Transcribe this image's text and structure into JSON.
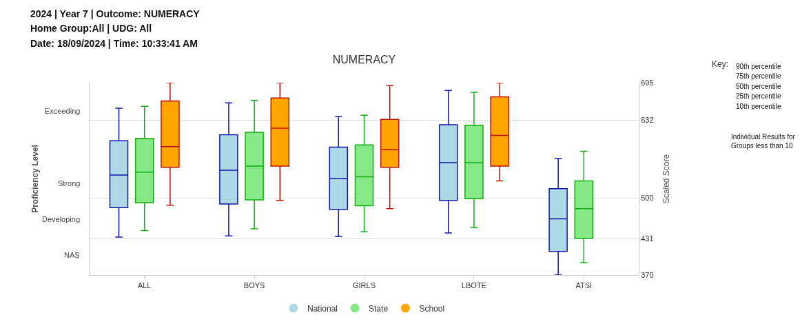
{
  "chart_data": {
    "type": "box",
    "title": "NUMERACY",
    "annotations": [
      "2024 | Year 7 | Outcome: NUMERACY",
      "Home Group:All | UDG: All",
      "Date: 18/09/2024 | Time: 10:33:41 AM",
      "Key:",
      "90th percentile",
      "75th percentile",
      "50th percentile",
      "25th percentile",
      "10th percentile",
      "Individual Results for Groups less than 10",
      "Proficiency Level",
      "Exceeding",
      "Strong",
      "Developing",
      "NAS"
    ],
    "categories": [
      "ALL",
      "BOYS",
      "GIRLS",
      "LBOTE",
      "ATSI"
    ],
    "ylabel": "Scaled Score",
    "ylim": [
      370,
      695
    ],
    "yticks": [
      370,
      431,
      500,
      632,
      695
    ],
    "grid": "y",
    "legend": "bottom",
    "series": [
      {
        "name": "National",
        "color": "#add8e6",
        "boxes": [
          {
            "low": 434,
            "q1": 484,
            "median": 539,
            "q3": 597,
            "high": 652
          },
          {
            "low": 436,
            "q1": 490,
            "median": 547,
            "q3": 607,
            "high": 661
          },
          {
            "low": 435,
            "q1": 481,
            "median": 533,
            "q3": 586,
            "high": 638
          },
          {
            "low": 441,
            "q1": 496,
            "median": 560,
            "q3": 624,
            "high": 682
          },
          {
            "low": 370,
            "q1": 410,
            "median": 465,
            "q3": 516,
            "high": 567
          }
        ]
      },
      {
        "name": "State",
        "color": "#86e886",
        "boxes": [
          {
            "low": 445,
            "q1": 492,
            "median": 544,
            "q3": 601,
            "high": 655
          },
          {
            "low": 448,
            "q1": 497,
            "median": 554,
            "q3": 611,
            "high": 665
          },
          {
            "low": 443,
            "q1": 487,
            "median": 536,
            "q3": 590,
            "high": 640
          },
          {
            "low": 450,
            "q1": 499,
            "median": 560,
            "q3": 623,
            "high": 679
          },
          {
            "low": 391,
            "q1": 432,
            "median": 482,
            "q3": 529,
            "high": 579
          }
        ]
      },
      {
        "name": "School",
        "color": "#ffa500",
        "boxes": [
          {
            "low": 488,
            "q1": 552,
            "median": 587,
            "q3": 664,
            "high": 695
          },
          {
            "low": 496,
            "q1": 554,
            "median": 618,
            "q3": 669,
            "high": 695
          },
          {
            "low": 482,
            "q1": 552,
            "median": 582,
            "q3": 633,
            "high": 690
          },
          {
            "low": 529,
            "q1": 554,
            "median": 606,
            "q3": 671,
            "high": 695
          },
          null
        ]
      }
    ]
  }
}
